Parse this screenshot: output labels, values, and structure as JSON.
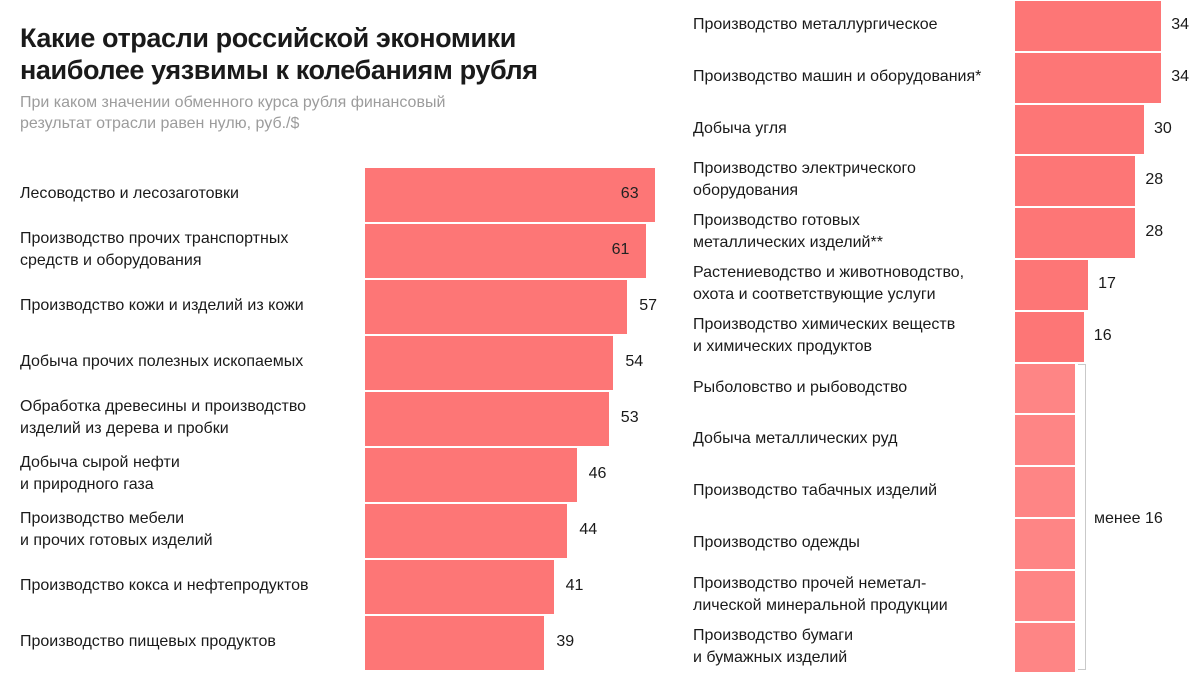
{
  "title": "Какие отрасли российской экономики наиболее уязвимы к колебаниям рубля",
  "subtitle": "При каком значении обменного курса рубля финансовый результат отрасли равен нулю, руб./$",
  "colors": {
    "bar": "#fd7676",
    "bar_light": "#fe8585",
    "text": "#1a1a1a",
    "subtitle": "#9c9c9c"
  },
  "chart_data": [
    {
      "type": "bar",
      "orientation": "horizontal",
      "categories": [
        "Лесоводство и лесозаготовки",
        "Производство прочих транспортных средств и оборудования",
        "Производство кожи и изделий из кожи",
        "Добыча прочих полезных ископаемых",
        "Обработка древесины и производство изделий из дерева и пробки",
        "Добыча сырой нефти и природного газа",
        "Производство мебели и прочих готовых изделий",
        "Производство кокса и нефтепродуктов",
        "Производство пищевых продуктов"
      ],
      "values": [
        63,
        61,
        57,
        54,
        53,
        46,
        44,
        41,
        39
      ],
      "value_labels": [
        "63",
        "61",
        "57",
        "54",
        "53",
        "46",
        "44",
        "41",
        "39"
      ]
    },
    {
      "type": "bar",
      "orientation": "horizontal",
      "categories": [
        "Производство металлургическое",
        "Производство машин и оборудования*",
        "Добыча угля",
        "Производство электрического оборудования",
        "Производство готовых металлических изделий**",
        "Растениеводство и животноводство, охота и соответствующие услуги",
        "Производство химических веществ и химических продуктов",
        "Рыболовство и рыбоводство",
        "Добыча металлических руд",
        "Производство табачных изделий",
        "Производство одежды",
        "Производство прочей неметаллической минеральной продукции",
        "Производство бумаги и бумажных изделий"
      ],
      "values": [
        34,
        34,
        30,
        28,
        28,
        17,
        16,
        14,
        14,
        14,
        14,
        14,
        14
      ],
      "value_labels": [
        "34",
        "34",
        "30",
        "28",
        "28",
        "17",
        "16",
        "",
        "",
        "",
        "",
        "",
        ""
      ],
      "group_label": "менее 16"
    }
  ],
  "labels_left": [
    [
      "Лесоводство и лесозаготовки"
    ],
    [
      "Производство прочих транспортных",
      "средств и оборудования"
    ],
    [
      "Производство кожи и изделий из кожи"
    ],
    [
      "Добыча прочих полезных ископаемых"
    ],
    [
      "Обработка древесины и производство",
      "изделий из дерева и пробки"
    ],
    [
      "Добыча сырой нефти",
      "и природного газа"
    ],
    [
      "Производство мебели",
      "и прочих готовых изделий"
    ],
    [
      "Производство кокса и нефтепродуктов"
    ],
    [
      "Производство пищевых продуктов"
    ]
  ],
  "labels_right": [
    [
      "Производство металлургическое"
    ],
    [
      "Производство машин и оборудования*"
    ],
    [
      "Добыча угля"
    ],
    [
      "Производство электрического",
      "оборудования"
    ],
    [
      "Производство готовых",
      "металлических изделий**"
    ],
    [
      "Растениеводство и животноводство,",
      "охота и соответствующие услуги"
    ],
    [
      "Производство химических веществ",
      "и химических продуктов"
    ],
    [
      "Рыболовство и рыбоводство"
    ],
    [
      "Добыча металлических руд"
    ],
    [
      "Производство табачных изделий"
    ],
    [
      "Производство одежды"
    ],
    [
      "Производство прочей неметал-",
      "лической минеральной продукции"
    ],
    [
      "Производство бумаги",
      "и бумажных изделий"
    ]
  ]
}
